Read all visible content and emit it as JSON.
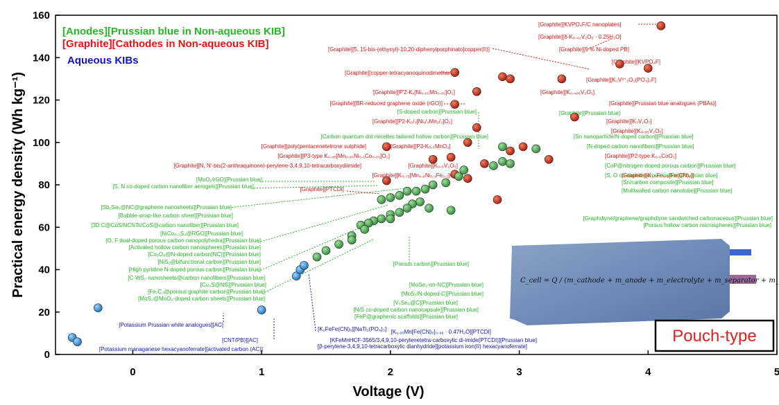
{
  "chart_data": {
    "type": "scatter",
    "ylabel": "Practical energy density (Wh kg⁻¹)",
    "xlabel": "Voltage (V)",
    "xlim": [
      -0.6,
      5.0
    ],
    "ylim": [
      0,
      160
    ],
    "xticks": [
      "0",
      "1",
      "2",
      "3",
      "4",
      "5"
    ],
    "yticks": [
      "0",
      "20",
      "40",
      "60",
      "80",
      "100",
      "120",
      "140",
      "160"
    ],
    "legend": [
      {
        "text": "[Anodes][Prussian blue in Non-aqueous KIB]",
        "color": "#22bb22"
      },
      {
        "text": "[Graphite][Cathodes in Non-aqueous KIB]",
        "color": "#ee1111"
      },
      {
        "text": "Aqueous KIBs",
        "color": "#1111cc"
      }
    ],
    "series": [
      {
        "name": "Graphite cathodes (non-aqueous)",
        "color": "#c8200e",
        "points": [
          {
            "x": 4.1,
            "y": 155
          },
          {
            "x": 3.78,
            "y": 137
          },
          {
            "x": 4.0,
            "y": 135
          },
          {
            "x": 2.87,
            "y": 131
          },
          {
            "x": 2.93,
            "y": 130
          },
          {
            "x": 3.33,
            "y": 130
          },
          {
            "x": 2.5,
            "y": 133
          },
          {
            "x": 2.67,
            "y": 124
          },
          {
            "x": 2.5,
            "y": 118
          },
          {
            "x": 2.67,
            "y": 107
          },
          {
            "x": 3.43,
            "y": 112
          },
          {
            "x": 1.97,
            "y": 98
          },
          {
            "x": 2.6,
            "y": 100
          },
          {
            "x": 2.93,
            "y": 96
          },
          {
            "x": 3.03,
            "y": 98
          },
          {
            "x": 2.47,
            "y": 93
          },
          {
            "x": 2.33,
            "y": 92
          },
          {
            "x": 2.73,
            "y": 90
          },
          {
            "x": 2.5,
            "y": 85
          },
          {
            "x": 2.6,
            "y": 83
          },
          {
            "x": 1.97,
            "y": 82
          },
          {
            "x": 3.23,
            "y": 92
          },
          {
            "x": 2.83,
            "y": 73
          }
        ]
      },
      {
        "name": "Prussian blue anodes (non-aqueous)",
        "color": "#3aa54a",
        "points": [
          {
            "x": 3.13,
            "y": 97
          },
          {
            "x": 2.87,
            "y": 98
          },
          {
            "x": 2.8,
            "y": 89
          },
          {
            "x": 2.87,
            "y": 91
          },
          {
            "x": 2.93,
            "y": 90
          },
          {
            "x": 2.53,
            "y": 84
          },
          {
            "x": 2.57,
            "y": 87
          },
          {
            "x": 2.43,
            "y": 81
          },
          {
            "x": 2.33,
            "y": 80
          },
          {
            "x": 2.27,
            "y": 78
          },
          {
            "x": 2.2,
            "y": 77
          },
          {
            "x": 2.13,
            "y": 77
          },
          {
            "x": 2.07,
            "y": 75
          },
          {
            "x": 2.0,
            "y": 74
          },
          {
            "x": 1.93,
            "y": 73
          },
          {
            "x": 2.23,
            "y": 72
          },
          {
            "x": 2.17,
            "y": 71
          },
          {
            "x": 2.13,
            "y": 69
          },
          {
            "x": 2.3,
            "y": 69
          },
          {
            "x": 2.47,
            "y": 68
          },
          {
            "x": 2.07,
            "y": 67
          },
          {
            "x": 2.0,
            "y": 66
          },
          {
            "x": 1.93,
            "y": 64
          },
          {
            "x": 1.87,
            "y": 63
          },
          {
            "x": 2.0,
            "y": 64
          },
          {
            "x": 1.83,
            "y": 62
          },
          {
            "x": 1.77,
            "y": 61
          },
          {
            "x": 1.8,
            "y": 59
          },
          {
            "x": 1.7,
            "y": 56
          },
          {
            "x": 1.7,
            "y": 54
          },
          {
            "x": 1.6,
            "y": 52
          },
          {
            "x": 1.5,
            "y": 49
          },
          {
            "x": 1.43,
            "y": 46
          }
        ]
      },
      {
        "name": "Aqueous KIBs",
        "color": "#2b8fd6",
        "points": [
          {
            "x": -0.27,
            "y": 22
          },
          {
            "x": -0.47,
            "y": 8
          },
          {
            "x": -0.43,
            "y": 6
          },
          {
            "x": 1.0,
            "y": 21
          },
          {
            "x": 1.27,
            "y": 37
          },
          {
            "x": 1.3,
            "y": 40
          },
          {
            "x": 1.33,
            "y": 42
          }
        ]
      }
    ],
    "labels": [
      {
        "text": "[Graphite][KVPO₄F/C nanoplates]",
        "color": "#ee1111"
      },
      {
        "text": "[Graphite][δ-K₀.₄₂V₂O₅ · 0.25H₂O]",
        "color": "#ee1111"
      },
      {
        "text": "[Graphite][5, 15-bis-(ethynyl)-10,20-diphenylporphinato]copper(II)]",
        "color": "#ee1111"
      },
      {
        "text": "[Graphite][5 % Ni-doped PB]",
        "color": "#ee1111"
      },
      {
        "text": "[Graphite][KVPO₄F]",
        "color": "#ee1111"
      },
      {
        "text": "[Graphite][copper-tetracyanoquinodimethane]",
        "color": "#ee1111"
      },
      {
        "text": "[Graphite][K₃V³⁺₂O₂(PO₄)₂F]",
        "color": "#ee1111"
      },
      {
        "text": "[Graphite][P'2-Kₓ[Ni₀.₀₅Mn₀.₉₅]O₂]",
        "color": "#ee1111"
      },
      {
        "text": "[Graphite][K₀.₄₈₆V₂O₅]",
        "color": "#ee1111"
      },
      {
        "text": "[Graphite][BR-reduced graphene oxide (rGO)]",
        "color": "#ee1111"
      },
      {
        "text": "[Graphite][Prussian blue analogues (PBAs)]",
        "color": "#ee1111"
      },
      {
        "text": "[S-doped carbon][Prussian blue]",
        "color": "#22bb22"
      },
      {
        "text": "[Graphite][Prussian blue]",
        "color": "#22bb22"
      },
      {
        "text": "[Graphite][P2-K₂/₃[Ni₁/₃Mn₂/₃]O₂]",
        "color": "#ee1111"
      },
      {
        "text": "[Graphite][K₃V₂O₇]",
        "color": "#ee1111"
      },
      {
        "text": "[Graphite][K₀.₈₅V₂O₅]",
        "color": "#ee1111"
      },
      {
        "text": "[Carbon quantum dot micelles tailored hollow carbon][Prussian blue]",
        "color": "#22bb22"
      },
      {
        "text": "[Sn nanoparticle/N-doped carbon][Prussian blue]",
        "color": "#22bb22"
      },
      {
        "text": "[Graphite][poly(pentacenetetrone sulphide]",
        "color": "#ee1111"
      },
      {
        "text": "[Graphite][P3-K₀.₅MnO₂]",
        "color": "#ee1111"
      },
      {
        "text": "[N-doped carbon nanofibers][Prussian blue]",
        "color": "#22bb22"
      },
      {
        "text": "[Graphite][P3-type K₀.₄₅[Mn₀.₈₅Ni₀.₁Co₀.₀₅]O₂]",
        "color": "#ee1111"
      },
      {
        "text": "[Graphite][P2-type K₀.₆CoO₂]",
        "color": "#ee1111"
      },
      {
        "text": "[Graphite][N, N'-bis(2-anthraquinone)-perylene-3,4,9,10-tetracarboxydiimide]",
        "color": "#ee1111"
      },
      {
        "text": "[Graphite][K₀.₅V₂O₅]",
        "color": "#ee1111"
      },
      {
        "text": "[CoP@nitrogen-doped porous carbon][Prussian blue]",
        "color": "#22bb22"
      },
      {
        "text": "[Graphite][K₀.₇₅[Mn₀.₈Ni₀.₁Fe₀.₁]O₂]",
        "color": "#ee1111"
      },
      {
        "text": "[S, O co-doped porous carbon][Prussian blue]",
        "color": "#22bb22"
      },
      {
        "text": "[MoO₂/rGO][Prussian blue]",
        "color": "#22bb22"
      },
      {
        "text": "[Graphite][K₁.₇Fe₀.₉[Fe(CN)₆]]",
        "color": "#ee1111"
      },
      {
        "text": "[S, N co-doped carbon nanofiber aerogels][Prussian blue]",
        "color": "#22bb22"
      },
      {
        "text": "[Graphite][PTCDI]",
        "color": "#ee1111"
      },
      {
        "text": "[Sn/carbon composite][Prussian blue]",
        "color": "#22bb22"
      },
      {
        "text": "[Multiwalled carbon nanotube][Prussian blue]",
        "color": "#22bb22"
      },
      {
        "text": "[Sb₂Se₃@NC@graphene nanosheets][Prussian blue]",
        "color": "#22bb22"
      },
      {
        "text": "[Bubble-wrap-like carbon sheet][Prussian blue]",
        "color": "#22bb22"
      },
      {
        "text": "[Graphdiyne/graphene/graphdiyne sandwiched carbonaceous][Prussian blue]",
        "color": "#22bb22"
      },
      {
        "text": "[3D C@CoS/NCNTs/CoS@carbon nanofiber][Prussian blue]",
        "color": "#22bb22"
      },
      {
        "text": "[Porous hollow carbon microspheres][Prussian blue]",
        "color": "#22bb22"
      },
      {
        "text": "[NiCo₀.₃S₄@RGO][Prussian blue]",
        "color": "#22bb22"
      },
      {
        "text": "[O, F dual-doped porous carbon nanopolyhedra][Prussian blue]",
        "color": "#22bb22"
      },
      {
        "text": "[Activated hollow carbon nanospheres][Prussian blue]",
        "color": "#22bb22"
      },
      {
        "text": "[Co₉O₈@N-doped carbon(NC)][Prussian blue]",
        "color": "#22bb22"
      },
      {
        "text": "[NiS₂@bifunctional carbon][Prussian blue]",
        "color": "#22bb22"
      },
      {
        "text": "[Porous carbon][Prussian blue]",
        "color": "#22bb22"
      },
      {
        "text": "[High pyridine N-doped porous carbon][Prussian blue]",
        "color": "#22bb22"
      },
      {
        "text": "[C-WS₂ nanosheets@carbon nanofibers][Prussian blue]",
        "color": "#22bb22"
      },
      {
        "text": "[Cu₃S@NS][Prussian blue]",
        "color": "#22bb22"
      },
      {
        "text": "[MoSe₂-on-NC][Prussian blue]",
        "color": "#22bb22"
      },
      {
        "text": "[Fe₇C₃@porous graphite carbon][Prussian blue]",
        "color": "#22bb22"
      },
      {
        "text": "[MoS₂/N-doped-C][Prussian blue]",
        "color": "#22bb22"
      },
      {
        "text": "[MoS₂@MoO₂-doped carbon sheets][Prussian blue]",
        "color": "#22bb22"
      },
      {
        "text": "[V₅Se₈@C][Prussian blue]",
        "color": "#22bb22"
      },
      {
        "text": "[N/S co-doped carbon nanocapsule][Prussian blue]",
        "color": "#22bb22"
      },
      {
        "text": "[FeP@graphenic scaffolds][Prussian blue]",
        "color": "#22bb22"
      },
      {
        "text": "[Potassium Prussian white analogues][AC]",
        "color": "#1111cc"
      },
      {
        "text": "[K₂FeFe(CN)₆][NaTi₂(PO₄)₃]",
        "color": "#1111cc"
      },
      {
        "text": "[K₁.₈₅Mn[Fe(CN)₆]₀.₉₉ · 0.47H₂O][PTCDI]",
        "color": "#1111cc"
      },
      {
        "text": "[CNT/PB)][AC]",
        "color": "#1111cc"
      },
      {
        "text": "[KFeMnHCF-3565/3,4,9,10-perylenetetra-carboxylic di-imide(PTCDI)][Prussian blue]",
        "color": "#1111cc"
      },
      {
        "text": "[Potassium managanese hexacyanoferrate][activated carbon (AC)]",
        "color": "#1111cc"
      },
      {
        "text": "[β-perylene-3,4,9,10-tetracarboxylic dianhydride][potassium iron(II) hexacyanoferrate]",
        "color": "#1111cc"
      }
    ],
    "inset": {
      "formula": "C_cell = Q / (m_cathode + m_anode + m_electrolyte + m_separator + m_casing) × V_average",
      "badge": "Pouch-type"
    }
  }
}
